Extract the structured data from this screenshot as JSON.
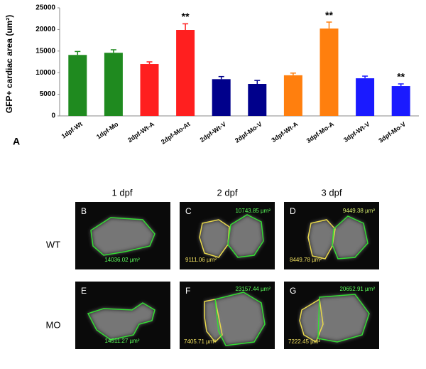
{
  "chart_data": {
    "type": "bar",
    "y_label": "GFP+ cardiac area (um²)",
    "panel_label": "A",
    "categories": [
      "1dpf-Wt",
      "1dpf-Mo",
      "2dpf-Wt-A",
      "2dpf-Mo-At",
      "2dpf-Wt-V",
      "2dpf-Mo-V",
      "3dpf-Wt-A",
      "3dpf-Mo-A",
      "3dpf-Wt-V",
      "3dpf-Mo-V"
    ],
    "values": [
      14100,
      14600,
      12000,
      19900,
      8500,
      7400,
      9400,
      20200,
      8700,
      6900
    ],
    "errors": [
      800,
      700,
      500,
      1400,
      600,
      800,
      500,
      1500,
      500,
      500
    ],
    "colors": [
      "#1f8a1f",
      "#1f8a1f",
      "#ff1f1f",
      "#ff1f1f",
      "#00008b",
      "#00008b",
      "#ff7f0e",
      "#ff7f0e",
      "#1a1aff",
      "#1a1aff"
    ],
    "annotations": [
      {
        "category": "2dpf-Mo-At",
        "text": "**"
      },
      {
        "category": "3dpf-Mo-A",
        "text": "**"
      },
      {
        "category": "3dpf-Mo-V",
        "text": "**"
      }
    ],
    "ylim": [
      0,
      25000
    ],
    "yticks": [
      0,
      5000,
      10000,
      15000,
      20000,
      25000
    ],
    "grid": false
  },
  "images": {
    "columns": [
      "1 dpf",
      "2 dpf",
      "3 dpf"
    ],
    "rows": [
      "WT",
      "MO"
    ],
    "panels": [
      {
        "letter": "B",
        "measurements": [
          {
            "text": "14036.02 µm²",
            "color": "#5cff5c"
          }
        ]
      },
      {
        "letter": "C",
        "measurements": [
          {
            "text": "10743.85 µm²",
            "color": "#5cff5c"
          },
          {
            "text": "9111.06 µm²",
            "color": "#f0e060"
          }
        ]
      },
      {
        "letter": "D",
        "measurements": [
          {
            "text": "9449.38 µm²",
            "color": "#d8f070"
          },
          {
            "text": "8449.78 µm²",
            "color": "#f0e060"
          }
        ]
      },
      {
        "letter": "E",
        "measurements": [
          {
            "text": "14511.27 µm²",
            "color": "#5cff5c"
          }
        ]
      },
      {
        "letter": "F",
        "measurements": [
          {
            "text": "23157.44 µm²",
            "color": "#5cff5c"
          },
          {
            "text": "7405.71 µm²",
            "color": "#f0e060"
          }
        ]
      },
      {
        "letter": "G",
        "measurements": [
          {
            "text": "20652.91 µm²",
            "color": "#5cff5c"
          },
          {
            "text": "7222.45 µm²",
            "color": "#f0e060"
          }
        ]
      }
    ]
  }
}
